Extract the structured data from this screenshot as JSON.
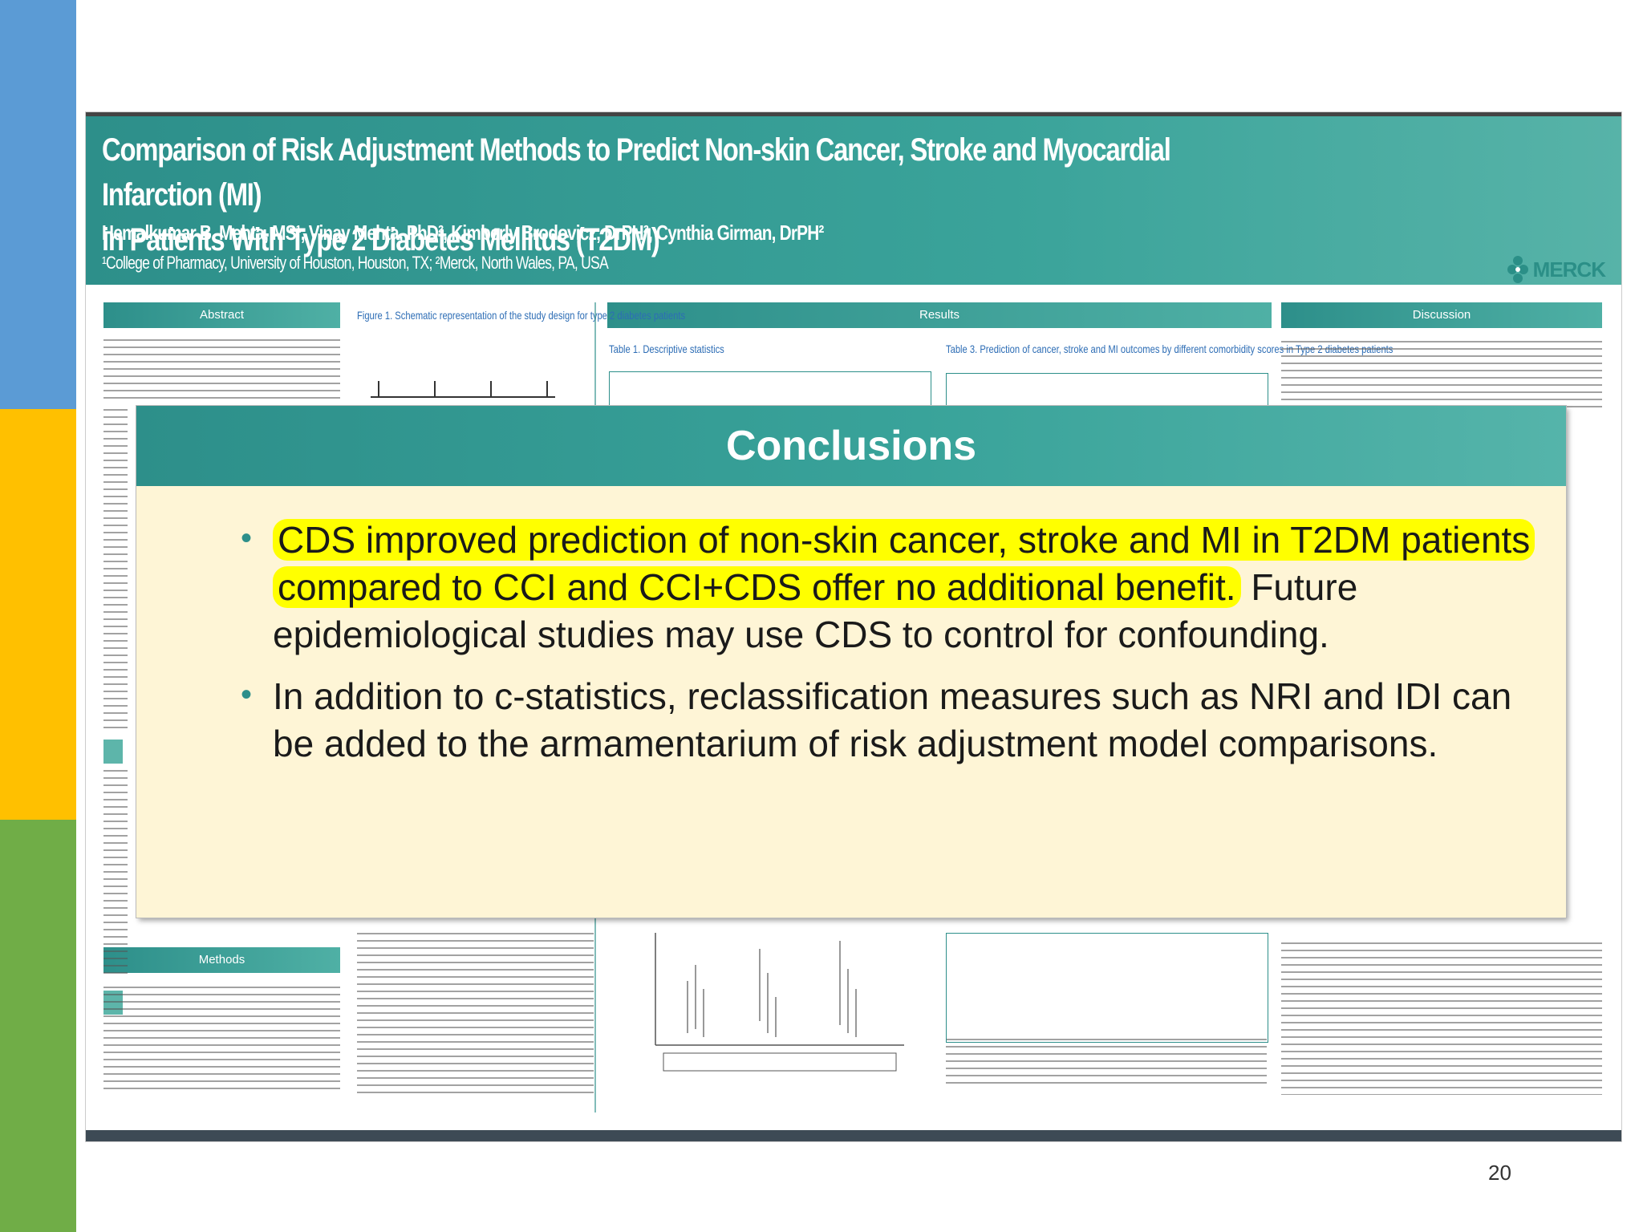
{
  "slide": {
    "page_number": "20"
  },
  "poster": {
    "title_line1": "Comparison of Risk Adjustment Methods to Predict Non-skin Cancer, Stroke and Myocardial Infarction (MI)",
    "title_line2": "in Patients With Type 2 Diabetes Mellitus (T2DM)",
    "authors": "Hemalkumar B. Mehta, MS¹, Vinay Mehta, PhD², Kimberly Brodovicz, DrPH², Cynthia Girman, DrPH²",
    "affiliations": "¹College of Pharmacy, University of Houston, Houston, TX; ²Merck, North Wales, PA, USA",
    "logo_text": "MERCK",
    "sections": {
      "abstract": "Abstract",
      "results": "Results",
      "discussion": "Discussion",
      "methods": "Methods"
    },
    "figure1_caption": "Figure 1. Schematic representation of the study design for type 2 diabetes patients",
    "table1_caption": "Table 1. Descriptive statistics",
    "table3_caption": "Table 3. Prediction of cancer, stroke and MI outcomes by different comorbidity scores in Type 2 diabetes patients"
  },
  "conclusions": {
    "heading": "Conclusions",
    "bullet1": {
      "highlighted": "CDS improved prediction of non-skin cancer, stroke and MI in T2DM patients compared to CCI and CCI+CDS offer no additional benefit.",
      "rest": "Future epidemiological studies may use CDS to control for confounding."
    },
    "bullet2": "In addition to c-statistics, reclassification measures such as NRI and IDI can be added to the armamentarium of risk adjustment model comparisons."
  },
  "colors": {
    "strip_blue": "#5b9bd5",
    "strip_yellow": "#ffc000",
    "strip_green": "#70ad47",
    "teal": "#2d8f8a",
    "highlight": "#ffff00",
    "panel_bg": "#fef5d6"
  }
}
